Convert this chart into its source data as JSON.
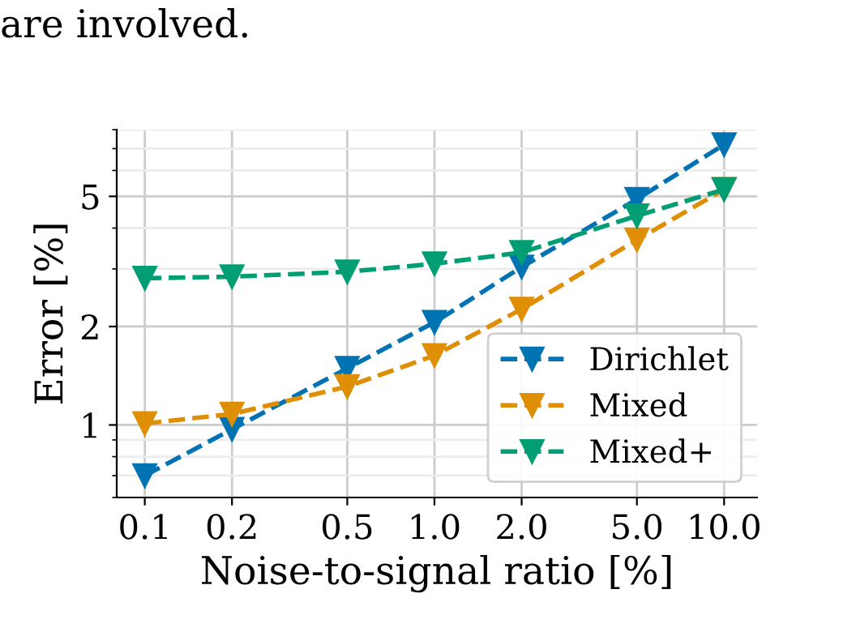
{
  "chart_data": {
    "type": "line",
    "annotations": [
      "are involved."
    ],
    "xlabel": "Noise-to-signal ratio [%]",
    "ylabel": "Error [%]",
    "x": [
      0.1,
      0.2,
      0.5,
      1.0,
      2.0,
      5.0,
      10.0
    ],
    "series": [
      {
        "name": "Dirichlet",
        "color": "#0173b2",
        "values": [
          0.7,
          0.97,
          1.49,
          2.06,
          3.04,
          4.9,
          7.2
        ]
      },
      {
        "name": "Mixed",
        "color": "#de8f05",
        "values": [
          1.01,
          1.08,
          1.31,
          1.63,
          2.26,
          3.68,
          5.25
        ]
      },
      {
        "name": "Mixed+",
        "color": "#029e73",
        "values": [
          2.81,
          2.84,
          2.94,
          3.11,
          3.37,
          4.36,
          5.25
        ]
      }
    ],
    "log": "xy",
    "xlim": [
      0.08,
      13
    ],
    "ylim": [
      0.6,
      8
    ],
    "xticks": [
      {
        "value": 0.1,
        "label": "0.1"
      },
      {
        "value": 0.2,
        "label": "0.2"
      },
      {
        "value": 0.5,
        "label": "0.5"
      },
      {
        "value": 1,
        "label": "1.0"
      },
      {
        "value": 2,
        "label": "2.0"
      },
      {
        "value": 5,
        "label": "5.0"
      },
      {
        "value": 10,
        "label": "10.0"
      }
    ],
    "yticks": [
      1,
      2,
      5
    ],
    "grid": true,
    "legend": "bottom right",
    "marker": "triangle",
    "line_style": "dashed"
  }
}
